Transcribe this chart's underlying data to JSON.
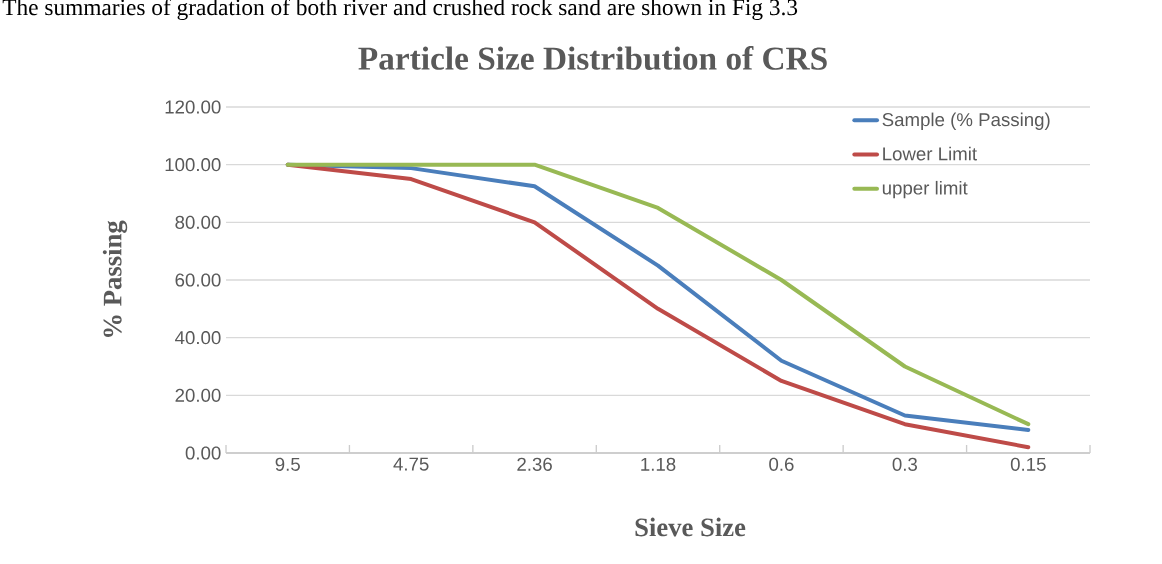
{
  "chart_data": {
    "type": "line",
    "title": "Particle Size Distribution of CRS",
    "xlabel": "Sieve Size",
    "ylabel": "% Passing",
    "annotations": [
      "The summaries of gradation of both river and crushed rock sand are shown in Fig 3.3"
    ],
    "categories": [
      "9.5",
      "4.75",
      "2.36",
      "1.18",
      "0.6",
      "0.3",
      "0.15"
    ],
    "series": [
      {
        "name": "Sample (% Passing)",
        "color": "#4a7ebb",
        "values": [
          100,
          98.8,
          92.5,
          65,
          32,
          13,
          8
        ]
      },
      {
        "name": "Lower Limit",
        "color": "#be4b48",
        "values": [
          100,
          95,
          80,
          50,
          25,
          10,
          2
        ]
      },
      {
        "name": "upper limit",
        "color": "#98b954",
        "values": [
          100,
          100,
          100,
          85,
          60,
          30,
          10
        ]
      }
    ],
    "ylim": [
      0,
      120
    ],
    "yticks": [
      {
        "value": 0,
        "label": "0.00"
      },
      {
        "value": 20,
        "label": "20.00"
      },
      {
        "value": 40,
        "label": "40.00"
      },
      {
        "value": 60,
        "label": "60.00"
      },
      {
        "value": 80,
        "label": "80.00"
      },
      {
        "value": 100,
        "label": "100.00"
      },
      {
        "value": 120,
        "label": "120.00"
      }
    ],
    "grid": "y",
    "legend": "top right",
    "marker": "none",
    "line_style": "solid"
  }
}
